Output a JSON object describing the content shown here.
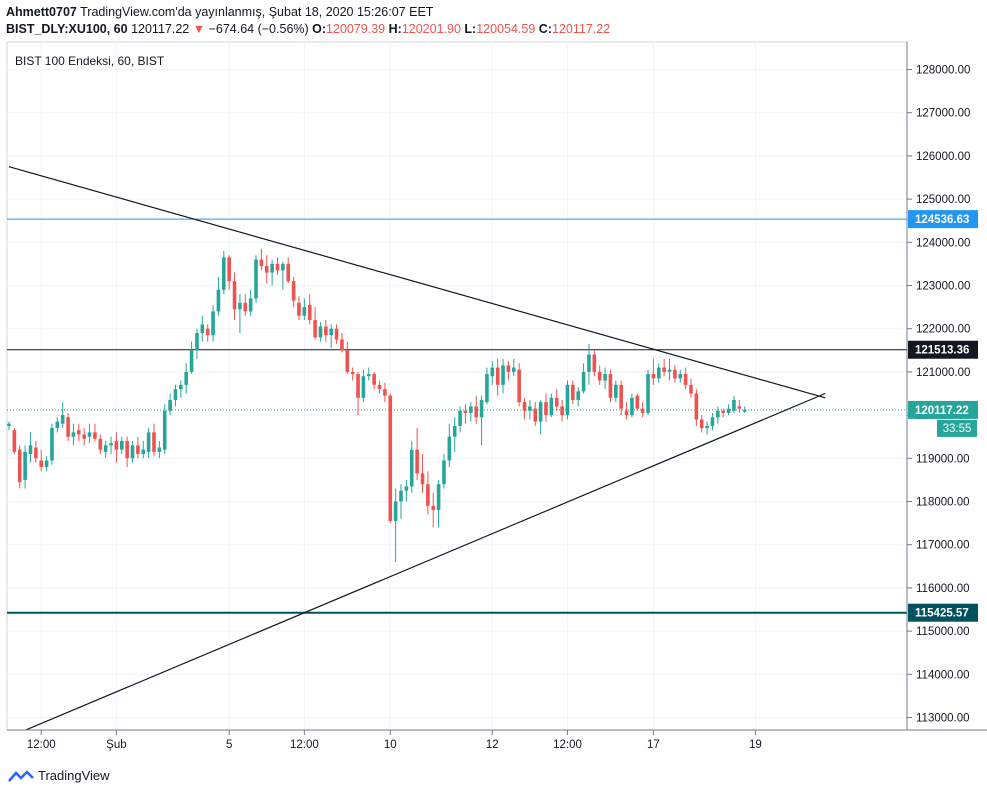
{
  "header": {
    "author": "Ahmett0707",
    "published": "TradingView.com'da yayınlanmış, Şubat 18, 2020 15:26:07 EET",
    "symbol": "BIST_DLY:XU100, 60",
    "last": "120117.22",
    "change_arrow": "▼",
    "change": "−674.64 (−0.56%)",
    "o_label": "O:",
    "o_value": "120079.39",
    "h_label": "H:",
    "h_value": "120201.90",
    "l_label": "L:",
    "l_value": "120054.59",
    "c_label": "C:",
    "c_value": "120117.22"
  },
  "footer": {
    "brand": "TradingView"
  },
  "colors": {
    "up": "#26a69a",
    "down": "#ef5350",
    "grid": "#f0f3fa",
    "level_blue": "#2196f3",
    "level_black": "#131722",
    "level_teal": "#00535e",
    "price_line": "#26a69a",
    "countdown_bg": "#26a69a"
  },
  "chart_data": {
    "type": "candlestick",
    "title": "BIST 100 Endeksi, 60, BIST",
    "ylim": [
      112600,
      128500
    ],
    "y_ticks": [
      "128000.00",
      "127000.00",
      "126000.00",
      "125000.00",
      "124000.00",
      "123000.00",
      "122000.00",
      "121000.00",
      "120000.00",
      "119000.00",
      "118000.00",
      "117000.00",
      "116000.00",
      "115000.00",
      "114000.00",
      "113000.00"
    ],
    "x_ticks": [
      {
        "label": "12:00",
        "bar": 6
      },
      {
        "label": "Şub",
        "bar": 20
      },
      {
        "label": "5",
        "bar": 41
      },
      {
        "label": "12:00",
        "bar": 55
      },
      {
        "label": "10",
        "bar": 71
      },
      {
        "label": "12",
        "bar": 90
      },
      {
        "label": "12:00",
        "bar": 104
      },
      {
        "label": "17",
        "bar": 120
      },
      {
        "label": "19",
        "bar": 139
      }
    ],
    "candles": [
      [
        119750,
        119850,
        119650,
        119800
      ],
      [
        119650,
        119700,
        119100,
        119150
      ],
      [
        119200,
        119300,
        118300,
        118450
      ],
      [
        118500,
        119300,
        118300,
        119150
      ],
      [
        119100,
        119600,
        118900,
        119300
      ],
      [
        119250,
        119400,
        118900,
        119000
      ],
      [
        118950,
        119200,
        118700,
        118800
      ],
      [
        118800,
        119050,
        118700,
        118950
      ],
      [
        118950,
        119800,
        118850,
        119700
      ],
      [
        119700,
        119950,
        119600,
        119850
      ],
      [
        119800,
        120300,
        119700,
        120000
      ],
      [
        119950,
        120050,
        119400,
        119500
      ],
      [
        119500,
        119800,
        119300,
        119600
      ],
      [
        119650,
        119800,
        119400,
        119550
      ],
      [
        119550,
        119700,
        119300,
        119450
      ],
      [
        119500,
        119800,
        119350,
        119600
      ],
      [
        119600,
        119800,
        119400,
        119450
      ],
      [
        119450,
        119550,
        119100,
        119200
      ],
      [
        119150,
        119400,
        119000,
        119300
      ],
      [
        119300,
        119500,
        119100,
        119350
      ],
      [
        119400,
        119600,
        118900,
        119200
      ],
      [
        119200,
        119500,
        119100,
        119400
      ],
      [
        119400,
        119500,
        118800,
        119000
      ],
      [
        119000,
        119400,
        118900,
        119300
      ],
      [
        119300,
        119500,
        119000,
        119100
      ],
      [
        119100,
        119400,
        119000,
        119200
      ],
      [
        119150,
        119700,
        119000,
        119600
      ],
      [
        119600,
        119800,
        119050,
        119150
      ],
      [
        119150,
        119400,
        119000,
        119250
      ],
      [
        119200,
        120250,
        119100,
        120100
      ],
      [
        120100,
        120500,
        120000,
        120350
      ],
      [
        120350,
        120700,
        120200,
        120600
      ],
      [
        120600,
        120800,
        120400,
        120700
      ],
      [
        120700,
        121200,
        120500,
        121000
      ],
      [
        121000,
        121700,
        120950,
        121500
      ],
      [
        121500,
        122000,
        121300,
        121900
      ],
      [
        121900,
        122300,
        121700,
        122100
      ],
      [
        122000,
        122100,
        121700,
        121850
      ],
      [
        121850,
        122550,
        121700,
        122400
      ],
      [
        122400,
        123200,
        122300,
        122900
      ],
      [
        122900,
        123800,
        122800,
        123650
      ],
      [
        123650,
        123700,
        122900,
        123100
      ],
      [
        123100,
        123300,
        122200,
        122450
      ],
      [
        122450,
        122800,
        121900,
        122600
      ],
      [
        122600,
        122800,
        122300,
        122400
      ],
      [
        122400,
        122900,
        122300,
        122700
      ],
      [
        122700,
        123700,
        122600,
        123600
      ],
      [
        123600,
        123850,
        123350,
        123450
      ],
      [
        123450,
        123700,
        123050,
        123300
      ],
      [
        123300,
        123600,
        123000,
        123500
      ],
      [
        123500,
        123650,
        123250,
        123350
      ],
      [
        123350,
        123550,
        122900,
        123500
      ],
      [
        123500,
        123650,
        123050,
        123100
      ],
      [
        123100,
        123200,
        122500,
        122650
      ],
      [
        122600,
        122750,
        122200,
        122300
      ],
      [
        122300,
        122700,
        122200,
        122500
      ],
      [
        122550,
        122800,
        122100,
        122200
      ],
      [
        122200,
        122500,
        121750,
        121800
      ],
      [
        121800,
        122150,
        121700,
        122050
      ],
      [
        122050,
        122200,
        121700,
        121850
      ],
      [
        121850,
        122100,
        121550,
        122000
      ],
      [
        122000,
        122100,
        121650,
        121750
      ],
      [
        121750,
        121900,
        121450,
        121500
      ],
      [
        121500,
        121700,
        120950,
        121000
      ],
      [
        121000,
        121100,
        120800,
        120950
      ],
      [
        120950,
        121000,
        120000,
        120400
      ],
      [
        120400,
        121050,
        120300,
        120900
      ],
      [
        120900,
        121100,
        120800,
        120950
      ],
      [
        120950,
        121000,
        120600,
        120700
      ],
      [
        120700,
        120800,
        120500,
        120600
      ],
      [
        120600,
        120750,
        120300,
        120450
      ],
      [
        120450,
        120500,
        117500,
        117550
      ],
      [
        117550,
        118300,
        116600,
        118000
      ],
      [
        118000,
        118400,
        117600,
        118250
      ],
      [
        118250,
        118500,
        118000,
        118350
      ],
      [
        118350,
        119400,
        118200,
        119200
      ],
      [
        119200,
        119700,
        118500,
        118650
      ],
      [
        118650,
        119100,
        118200,
        118400
      ],
      [
        118400,
        118700,
        117700,
        117900
      ],
      [
        117900,
        118200,
        117400,
        117800
      ],
      [
        117800,
        118500,
        117400,
        118400
      ],
      [
        118400,
        119100,
        118300,
        118950
      ],
      [
        118950,
        119800,
        118800,
        119500
      ],
      [
        119500,
        119950,
        119150,
        119750
      ],
      [
        119750,
        120200,
        119600,
        120100
      ],
      [
        120100,
        120250,
        119800,
        120050
      ],
      [
        120050,
        120300,
        119850,
        120200
      ],
      [
        120200,
        120450,
        119800,
        119950
      ],
      [
        119950,
        120450,
        119300,
        120350
      ],
      [
        120300,
        121100,
        120250,
        120950
      ],
      [
        120900,
        121250,
        120700,
        121100
      ],
      [
        121100,
        121300,
        120450,
        120700
      ],
      [
        120700,
        121300,
        120500,
        121150
      ],
      [
        121150,
        121250,
        120800,
        121000
      ],
      [
        121000,
        121300,
        120900,
        121100
      ],
      [
        121050,
        121200,
        120200,
        120300
      ],
      [
        120300,
        120400,
        119900,
        120100
      ],
      [
        120100,
        120350,
        119900,
        120200
      ],
      [
        120150,
        120300,
        119750,
        119850
      ],
      [
        119850,
        120350,
        119550,
        120300
      ],
      [
        120300,
        120500,
        119850,
        120000
      ],
      [
        120000,
        120500,
        119950,
        120400
      ],
      [
        120400,
        120600,
        120100,
        120200
      ],
      [
        120200,
        120350,
        119850,
        120000
      ],
      [
        120000,
        120800,
        119900,
        120700
      ],
      [
        120700,
        120800,
        120250,
        120350
      ],
      [
        120350,
        120650,
        120200,
        120550
      ],
      [
        120550,
        121200,
        120500,
        121000
      ],
      [
        121000,
        121650,
        120700,
        121400
      ],
      [
        121400,
        121500,
        120900,
        121000
      ],
      [
        121000,
        121150,
        120700,
        120800
      ],
      [
        120800,
        121100,
        120600,
        120950
      ],
      [
        120950,
        121050,
        120300,
        120400
      ],
      [
        120400,
        120800,
        120300,
        120700
      ],
      [
        120700,
        120800,
        120000,
        120150
      ],
      [
        120100,
        120300,
        119900,
        120000
      ],
      [
        120000,
        120500,
        119950,
        120400
      ],
      [
        120450,
        120500,
        120100,
        120150
      ],
      [
        120150,
        120300,
        119950,
        120050
      ],
      [
        120050,
        121050,
        120000,
        120950
      ],
      [
        120950,
        121300,
        120700,
        120850
      ],
      [
        120850,
        121200,
        120750,
        121100
      ],
      [
        121100,
        121300,
        120900,
        121000
      ],
      [
        121000,
        121300,
        120800,
        121050
      ],
      [
        121050,
        121150,
        120750,
        120850
      ],
      [
        120850,
        121050,
        120750,
        120950
      ],
      [
        120950,
        121100,
        120600,
        120700
      ],
      [
        120700,
        120850,
        120400,
        120500
      ],
      [
        120500,
        120600,
        119750,
        119900
      ],
      [
        119900,
        120000,
        119600,
        119700
      ],
      [
        119700,
        119850,
        119550,
        119750
      ],
      [
        119750,
        120050,
        119650,
        119950
      ],
      [
        119950,
        120200,
        119800,
        120100
      ],
      [
        120100,
        120150,
        119950,
        120050
      ],
      [
        120050,
        120250,
        120000,
        120150
      ],
      [
        120100,
        120450,
        120050,
        120350
      ],
      [
        120200,
        120350,
        120050,
        120150
      ],
      [
        120080,
        120200,
        120050,
        120120
      ]
    ],
    "level_lines": [
      {
        "price": 124536.63,
        "label": "124536.63",
        "color": "#2196f3"
      },
      {
        "price": 121513.36,
        "label": "121513.36",
        "color": "#131722"
      },
      {
        "price": 115425.57,
        "label": "115425.57",
        "color": "#00535e"
      }
    ],
    "current_price": {
      "label": "120117.22",
      "countdown": "33:55"
    },
    "trendlines": [
      {
        "from": {
          "bar": 0,
          "price": 125750
        },
        "to": {
          "bar": 152,
          "price": 120400
        }
      },
      {
        "from": {
          "bar": 1,
          "price": 112600
        },
        "to": {
          "bar": 152,
          "price": 120500
        }
      }
    ]
  }
}
